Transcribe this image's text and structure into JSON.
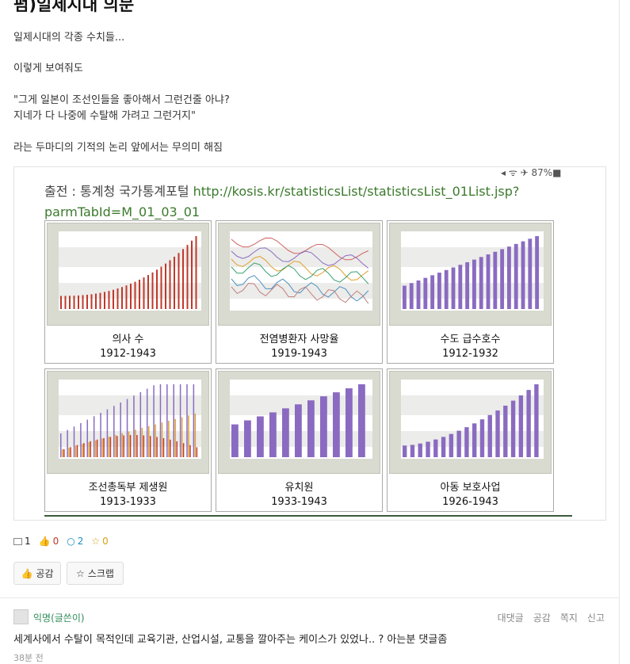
{
  "post": {
    "title": "펌)일제시대 의문",
    "lines": [
      "일제시대의 각종 수치들...",
      "이렇게 보여줘도",
      "\"그게 일본이 조선인들을 좋아해서 그런건줄 아냐?",
      "지네가 다 나중에 수탈해 가려고 그런거지\"",
      "라는 두마디의 기적의 논리 앞에서는 무의미 해짐"
    ]
  },
  "figure": {
    "status": "◂ ᯤ ✈ 87%■",
    "source_prefix": "출전 : 통계청 국가통계포털 ",
    "source_url_1": "http://kosis.kr/statisticsList/statisticsList_01List.jsp?",
    "source_url_2": "parmTabId=M_01_03_01",
    "panels": [
      {
        "name": "의사 수",
        "years": "1912-1943"
      },
      {
        "name": "전염병환자 사망율",
        "years": "1919-1943"
      },
      {
        "name": "수도 급수호수",
        "years": "1912-1932"
      },
      {
        "name": "조선총독부 제생원",
        "years": "1913-1933"
      },
      {
        "name": "유치원",
        "years": "1933-1943"
      },
      {
        "name": "아동 보호사업",
        "years": "1926-1943"
      }
    ]
  },
  "stats": {
    "images": "1",
    "likes": "0",
    "comments": "2",
    "stars": "0"
  },
  "buttons": {
    "empathy": "공감",
    "scrap": "스크랩"
  },
  "comment": {
    "author": "익명(글쓴이)",
    "actions": [
      "대댓글",
      "공감",
      "쪽지",
      "신고"
    ],
    "text": "세계사에서 수탈이 목적인데 교육기관, 산업시설, 교통을 깔아주는 케이스가 있었나.. ? 아는분 댓글좀",
    "time": "38분 전"
  },
  "colors": {
    "accent": "#2e8b57",
    "purple_bar": "#8a6bc1",
    "red_bar": "#c0392b",
    "orange_bar": "#e0a030"
  }
}
